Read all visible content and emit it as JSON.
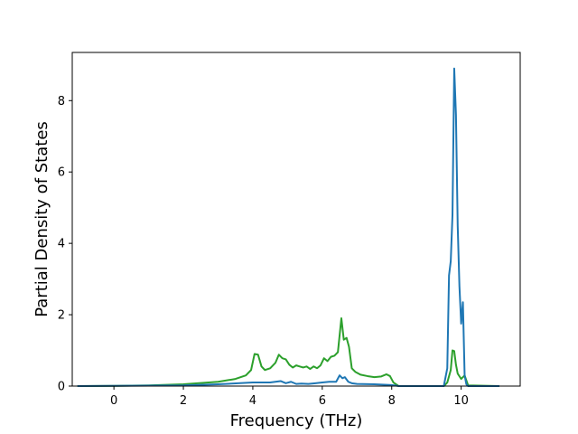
{
  "chart_data": {
    "type": "line",
    "title": "",
    "xlabel": "Frequency (THz)",
    "ylabel": "Partial Density of States",
    "xlim": [
      -1.2,
      11.7
    ],
    "ylim": [
      0,
      9.35
    ],
    "xticks": [
      0,
      2,
      4,
      6,
      8,
      10
    ],
    "yticks": [
      0,
      2,
      4,
      6,
      8
    ],
    "xtick_labels": [
      "0",
      "2",
      "4",
      "6",
      "8",
      "10"
    ],
    "ytick_labels": [
      "0",
      "2",
      "4",
      "6",
      "8"
    ],
    "grid": false,
    "legend": "none",
    "series": [
      {
        "color": "#2ca02c",
        "x": [
          -1.05,
          0.0,
          1.0,
          2.0,
          3.0,
          3.5,
          3.8,
          3.95,
          4.05,
          4.15,
          4.25,
          4.35,
          4.5,
          4.65,
          4.75,
          4.85,
          4.95,
          5.05,
          5.15,
          5.25,
          5.35,
          5.45,
          5.55,
          5.65,
          5.75,
          5.85,
          5.95,
          6.05,
          6.15,
          6.25,
          6.35,
          6.45,
          6.55,
          6.62,
          6.7,
          6.77,
          6.85,
          6.95,
          7.1,
          7.3,
          7.5,
          7.7,
          7.85,
          7.95,
          8.05,
          8.2,
          9.5,
          9.6,
          9.7,
          9.75,
          9.8,
          9.85,
          9.9,
          10.0,
          10.1,
          10.2,
          11.1
        ],
        "y": [
          0.0,
          0.005,
          0.02,
          0.05,
          0.12,
          0.2,
          0.3,
          0.45,
          0.9,
          0.88,
          0.55,
          0.45,
          0.5,
          0.65,
          0.88,
          0.78,
          0.75,
          0.6,
          0.52,
          0.58,
          0.55,
          0.52,
          0.55,
          0.48,
          0.55,
          0.5,
          0.58,
          0.78,
          0.7,
          0.82,
          0.85,
          0.95,
          1.9,
          1.3,
          1.35,
          1.1,
          0.5,
          0.4,
          0.32,
          0.28,
          0.25,
          0.27,
          0.33,
          0.28,
          0.1,
          0.0,
          0.0,
          0.1,
          0.45,
          1.0,
          0.98,
          0.6,
          0.35,
          0.2,
          0.3,
          0.02,
          0.0
        ]
      },
      {
        "color": "#1f77b4",
        "x": [
          -1.05,
          0.0,
          2.0,
          3.0,
          4.0,
          4.5,
          4.8,
          4.95,
          5.1,
          5.25,
          5.4,
          5.6,
          5.8,
          6.0,
          6.2,
          6.4,
          6.5,
          6.58,
          6.65,
          6.75,
          6.85,
          7.0,
          7.5,
          8.0,
          8.2,
          9.5,
          9.6,
          9.65,
          9.7,
          9.75,
          9.8,
          9.85,
          9.9,
          9.95,
          10.0,
          10.05,
          10.1,
          10.15,
          10.2,
          11.1
        ],
        "y": [
          0.0,
          0.005,
          0.02,
          0.05,
          0.1,
          0.1,
          0.14,
          0.08,
          0.12,
          0.06,
          0.07,
          0.06,
          0.08,
          0.1,
          0.12,
          0.12,
          0.3,
          0.22,
          0.25,
          0.12,
          0.08,
          0.06,
          0.05,
          0.03,
          0.0,
          0.0,
          0.5,
          3.1,
          3.5,
          4.8,
          8.9,
          7.6,
          4.5,
          2.8,
          1.75,
          2.35,
          0.3,
          0.05,
          0.0,
          0.0
        ]
      }
    ]
  }
}
